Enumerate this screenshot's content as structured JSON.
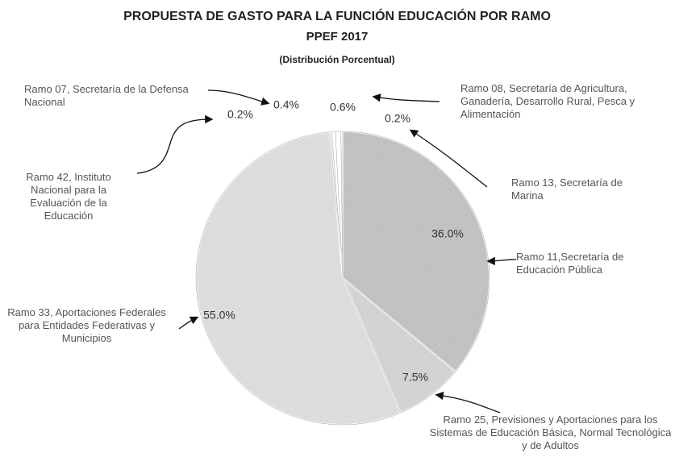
{
  "chart_data": {
    "type": "pie",
    "title": "PROPUESTA DE GASTO PARA LA FUNCIÓN EDUCACIÓN POR RAMO",
    "subtitle": "PPEF 2017",
    "note": "(Distribución Porcentual)",
    "categories": [
      "Ramo 11,Secretaría de Educación Pública",
      "Ramo 25, Previsiones y Aportaciones para los Sistemas de Educación Básica, Normal Tecnológica y de Adultos",
      "Ramo 33, Aportaciones Federales para Entidades Federativas y Municipios",
      "Ramo 42, Instituto Nacional para la Evaluación de la Educación",
      "Ramo 07, Secretaría de la Defensa  Nacional",
      "Ramo 08, Secretaría de Agricultura, Ganadería, Desarrollo Rural, Pesca y Alimentación",
      "Ramo 13, Secretaría de Marina"
    ],
    "values": [
      36.0,
      7.5,
      55.0,
      0.2,
      0.4,
      0.6,
      0.2
    ],
    "value_labels": [
      "36.0%",
      "7.5%",
      "55.0%",
      "0.2%",
      "0.4%",
      "0.6%",
      "0.2%"
    ],
    "colors": [
      "#bdbdbd",
      "#cfcfcf",
      "#dadada",
      "#ffffff",
      "#ffffff",
      "#ffffff",
      "#ffffff"
    ]
  }
}
